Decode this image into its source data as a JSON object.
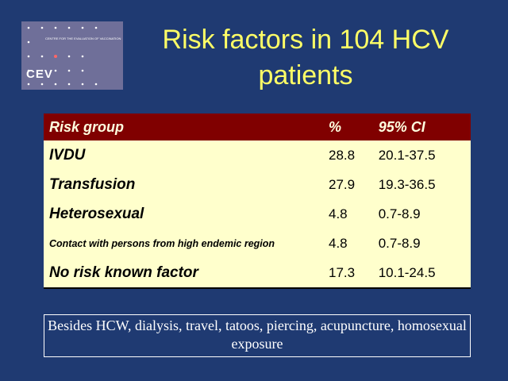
{
  "logo": {
    "subtitle": "CENTRE FOR THE EVALUATION OF VACCINATION",
    "acronym": "CEV"
  },
  "header": {
    "title": "Risk factors in 104 HCV patients"
  },
  "table": {
    "columns": [
      "Risk group",
      "%",
      "95% CI"
    ],
    "rows": [
      [
        "IVDU",
        "28.8",
        "20.1-37.5"
      ],
      [
        "Transfusion",
        "27.9",
        "19.3-36.5"
      ],
      [
        "Heterosexual",
        "4.8",
        "0.7-8.9"
      ],
      [
        "Contact with persons from high endemic region",
        "4.8",
        "0.7-8.9"
      ],
      [
        "No risk known factor",
        "17.3",
        "10.1-24.5"
      ]
    ]
  },
  "note": "Besides HCW, dialysis, travel, tatoos, piercing, acupuncture, homosexual exposure"
}
